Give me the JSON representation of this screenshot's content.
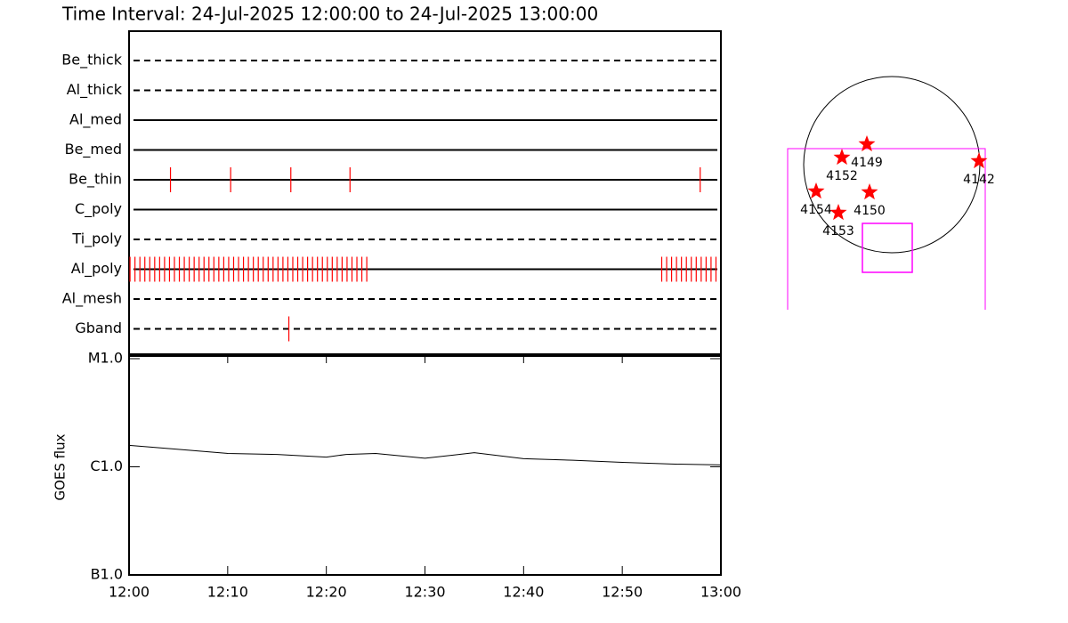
{
  "chart_data": [
    {
      "type": "timeline",
      "title": "Time Interval: 24-Jul-2025 12:00:00 to 24-Jul-2025 13:00:00",
      "xlim": [
        0,
        60
      ],
      "event_color": "#ff0000",
      "rows": [
        {
          "name": "Be_thick",
          "style": "dashed",
          "events": []
        },
        {
          "name": "Al_thick",
          "style": "dashed",
          "events": []
        },
        {
          "name": "Al_med",
          "style": "solid",
          "events": []
        },
        {
          "name": "Be_med",
          "style": "solid",
          "events": []
        },
        {
          "name": "Be_thin",
          "style": "solid",
          "events": [
            4.2,
            10.3,
            16.4,
            22.4,
            57.9
          ]
        },
        {
          "name": "C_poly",
          "style": "solid",
          "events": []
        },
        {
          "name": "Ti_poly",
          "style": "dashed",
          "events": []
        },
        {
          "name": "Al_poly",
          "style": "solid",
          "events": [
            0.1,
            0.6,
            1.1,
            1.6,
            2.1,
            2.6,
            3.1,
            3.6,
            4.1,
            4.6,
            5.1,
            5.6,
            6.1,
            6.6,
            7.1,
            7.6,
            8.1,
            8.6,
            9.1,
            9.6,
            10.1,
            10.6,
            11.1,
            11.6,
            12.1,
            12.6,
            13.1,
            13.6,
            14.1,
            14.6,
            15.1,
            15.6,
            16.1,
            16.6,
            17.1,
            17.6,
            18.1,
            18.6,
            19.1,
            19.6,
            20.1,
            20.6,
            21.1,
            21.6,
            22.1,
            22.6,
            23.1,
            23.6,
            24.1,
            54.0,
            54.5,
            55.0,
            55.5,
            56.0,
            56.5,
            57.0,
            57.5,
            58.0,
            58.5,
            59.0,
            59.5
          ]
        },
        {
          "name": "Al_mesh",
          "style": "dashed",
          "events": []
        },
        {
          "name": "Gband",
          "style": "dashed",
          "events": [
            16.2
          ]
        }
      ]
    },
    {
      "type": "line",
      "y_label": "GOES flux",
      "log_scale": true,
      "color": "#000000",
      "x": [
        0,
        5,
        10,
        15,
        20,
        22,
        25,
        30,
        35,
        40,
        45,
        50,
        55,
        60
      ],
      "values": [
        1.58e-06,
        1.45e-06,
        1.33e-06,
        1.3e-06,
        1.23e-06,
        1.3e-06,
        1.33e-06,
        1.2e-06,
        1.35e-06,
        1.19e-06,
        1.15e-06,
        1.1e-06,
        1.06e-06,
        1.04e-06
      ],
      "xlim": [
        0,
        60
      ],
      "xticks": [
        {
          "value": 0,
          "label": "12:00"
        },
        {
          "value": 10,
          "label": "12:10"
        },
        {
          "value": 20,
          "label": "12:20"
        },
        {
          "value": 30,
          "label": "12:30"
        },
        {
          "value": 40,
          "label": "12:40"
        },
        {
          "value": 50,
          "label": "12:50"
        },
        {
          "value": 60,
          "label": "13:00"
        }
      ],
      "ylim": [
        1e-07,
        1e-05
      ],
      "yticks": [
        {
          "value": 1e-05,
          "label": "M1.0"
        },
        {
          "value": 1e-06,
          "label": "C1.0"
        },
        {
          "value": 1e-07,
          "label": "B1.0"
        }
      ]
    },
    {
      "type": "sunmap",
      "marker_color": "#ff0000",
      "box_color": "#ff00ff",
      "regions": [
        {
          "label": "4149"
        },
        {
          "label": "4152"
        },
        {
          "label": "4142"
        },
        {
          "label": "4154"
        },
        {
          "label": "4150"
        },
        {
          "label": "4153"
        }
      ]
    }
  ]
}
